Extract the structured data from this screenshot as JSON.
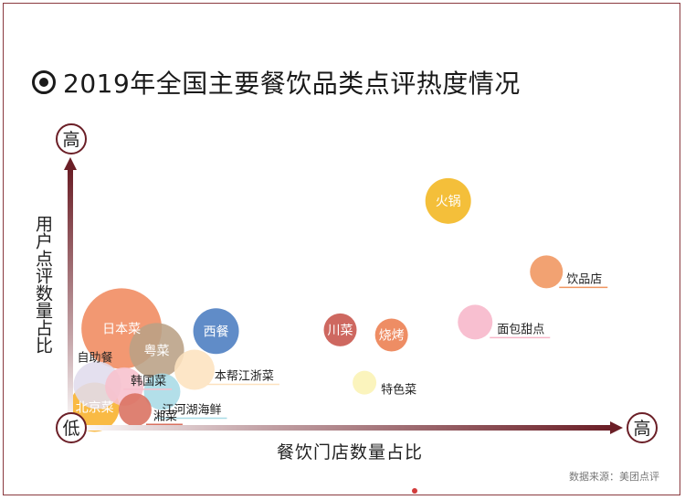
{
  "title": "2019年全国主要餐饮品类点评热度情况",
  "source": "数据来源：美团点评",
  "colors": {
    "axis": "#6b1f27",
    "frame": "#8a3a3f"
  },
  "chart_data": {
    "type": "scatter",
    "title": "2019年全国主要餐饮品类点评热度情况",
    "xlabel": "餐饮门店数量占比",
    "ylabel": "用户点评数量占比",
    "y_high_label": "高",
    "x_high_label": "高",
    "origin_label": "低",
    "xlim": [
      0,
      100
    ],
    "ylim": [
      0,
      100
    ],
    "grid": false,
    "points": [
      {
        "label": "火锅",
        "x": 70.0,
        "y": 88.0,
        "r": 25,
        "color": "#f3b61f",
        "inside": true
      },
      {
        "label": "饮品店",
        "x": 88.2,
        "y": 60.5,
        "r": 18,
        "color": "#f0955f",
        "inside": false
      },
      {
        "label": "面包甜点",
        "x": 75.0,
        "y": 41.0,
        "r": 19,
        "color": "#f7b6c9",
        "inside": false
      },
      {
        "label": "烧烤",
        "x": 59.5,
        "y": 36.0,
        "r": 18,
        "color": "#ec7d4f",
        "inside": true
      },
      {
        "label": "川菜",
        "x": 50.0,
        "y": 38.0,
        "r": 18,
        "color": "#c7534a",
        "inside": true
      },
      {
        "label": "特色菜",
        "x": 54.5,
        "y": 17.5,
        "r": 13,
        "color": "#fbf3b4",
        "inside": false
      },
      {
        "label": "西餐",
        "x": 27.0,
        "y": 37.5,
        "r": 25,
        "color": "#4a7cc0",
        "inside": true
      },
      {
        "label": "本帮江浙菜",
        "x": 23.0,
        "y": 22.5,
        "r": 22,
        "color": "#fde2bf",
        "inside": false
      },
      {
        "label": "日本菜",
        "x": 9.5,
        "y": 38.5,
        "r": 44,
        "color": "#f08a5e",
        "inside": true
      },
      {
        "label": "粤菜",
        "x": 16.0,
        "y": 30.0,
        "r": 30,
        "color": "#b9a085",
        "inside": true
      },
      {
        "label": "江河湖海鲜",
        "x": 17.0,
        "y": 14.0,
        "r": 20,
        "color": "#a8dbe6",
        "inside": false
      },
      {
        "label": "韩国菜",
        "x": 10.0,
        "y": 16.0,
        "r": 21,
        "color": "#f7c0cd",
        "inside": false
      },
      {
        "label": "自助餐",
        "x": 5.0,
        "y": 16.5,
        "r": 26,
        "color": "#e0dced",
        "inside": false
      },
      {
        "label": "湘菜",
        "x": 12.0,
        "y": 7.0,
        "r": 18,
        "color": "#d9705f",
        "inside": false
      },
      {
        "label": "北京菜",
        "x": 4.5,
        "y": 8.0,
        "r": 27,
        "color": "#f8b12a",
        "inside": true
      }
    ]
  }
}
